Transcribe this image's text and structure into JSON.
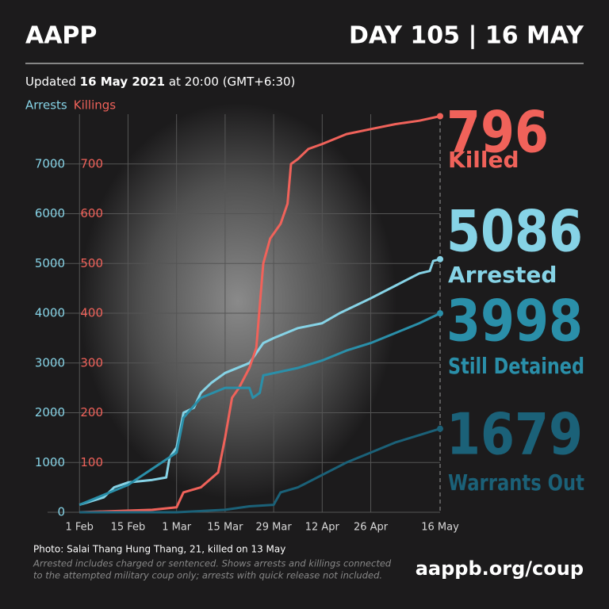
{
  "header": {
    "brand": "AAPP",
    "day": "DAY 105 | 16 MAY"
  },
  "updated": {
    "prefix": "Updated",
    "date": "16 May 2021",
    "suffix": "at 20:00 (GMT+6:30)"
  },
  "chart_data": {
    "type": "line",
    "xticks": [
      {
        "value": 0,
        "label": "1 Feb"
      },
      {
        "value": 14,
        "label": "15 Feb"
      },
      {
        "value": 28,
        "label": "1 Mar"
      },
      {
        "value": 42,
        "label": "15 Mar"
      },
      {
        "value": 56,
        "label": "29 Mar"
      },
      {
        "value": 70,
        "label": "12 Apr"
      },
      {
        "value": 84,
        "label": "26 Apr"
      },
      {
        "value": 104,
        "label": "16 May"
      }
    ],
    "xlim": [
      -6,
      104
    ],
    "ylim": [
      0,
      8000
    ],
    "yticks": [
      0,
      1000,
      2000,
      3000,
      4000,
      5000,
      6000,
      7000
    ],
    "y2lim": [
      0,
      800
    ],
    "y2ticks": [
      100,
      200,
      300,
      400,
      500,
      600,
      700
    ],
    "grid": true,
    "series": [
      {
        "name": "Arrests",
        "color": "#86d3e6",
        "x": [
          0,
          7,
          10,
          14,
          21,
          25,
          26,
          28,
          30,
          33,
          35,
          38,
          42,
          49,
          53,
          56,
          63,
          70,
          75,
          84,
          91,
          98,
          101,
          102,
          104
        ],
        "values": [
          150,
          300,
          500,
          600,
          650,
          700,
          1100,
          1300,
          2000,
          2100,
          2400,
          2600,
          2800,
          3000,
          3400,
          3500,
          3700,
          3800,
          4000,
          4300,
          4550,
          4800,
          4850,
          5050,
          5086
        ]
      },
      {
        "name": "Killings",
        "color": "#f0625a",
        "axis": "y2",
        "x": [
          0,
          21,
          28,
          30,
          35,
          40,
          42,
          44,
          46,
          49,
          51,
          53,
          55,
          58,
          60,
          61,
          63,
          66,
          70,
          77,
          84,
          91,
          98,
          104
        ],
        "values": [
          0,
          5,
          10,
          40,
          50,
          80,
          150,
          230,
          250,
          290,
          330,
          500,
          550,
          580,
          620,
          700,
          710,
          730,
          740,
          760,
          770,
          780,
          787,
          796
        ]
      },
      {
        "color": "#2a8fa9",
        "x": [
          0,
          14,
          28,
          30,
          35,
          42,
          49,
          50,
          52,
          53,
          63,
          70,
          77,
          84,
          91,
          98,
          104
        ],
        "values": [
          150,
          550,
          1200,
          1900,
          2300,
          2500,
          2500,
          2300,
          2400,
          2750,
          2900,
          3050,
          3250,
          3400,
          3600,
          3800,
          3998
        ]
      },
      {
        "color": "#1b6178",
        "x": [
          0,
          28,
          42,
          49,
          56,
          58,
          63,
          70,
          77,
          84,
          91,
          98,
          104
        ],
        "values": [
          0,
          0,
          50,
          120,
          150,
          400,
          500,
          750,
          1000,
          1200,
          1400,
          1550,
          1679
        ]
      }
    ],
    "callouts": [
      {
        "value": 796,
        "label": "Killed",
        "color": "#f0625a"
      },
      {
        "value": 5086,
        "label": "Arrested",
        "color": "#86d3e6"
      },
      {
        "value": 3998,
        "label": "Still Detained",
        "color": "#2a8fa9"
      },
      {
        "value": 1679,
        "label": "Warrants Out",
        "color": "#1b6178"
      }
    ]
  },
  "footer": {
    "photo": "Photo: Salai Thang Hung Thang, 21, killed on 13 May",
    "note_1": "Arrested includes charged or sentenced. Shows arrests and killings connected",
    "note_2": "to the attempted military coup only; arrests with quick release not included.",
    "url": "aappb.org/coup"
  }
}
